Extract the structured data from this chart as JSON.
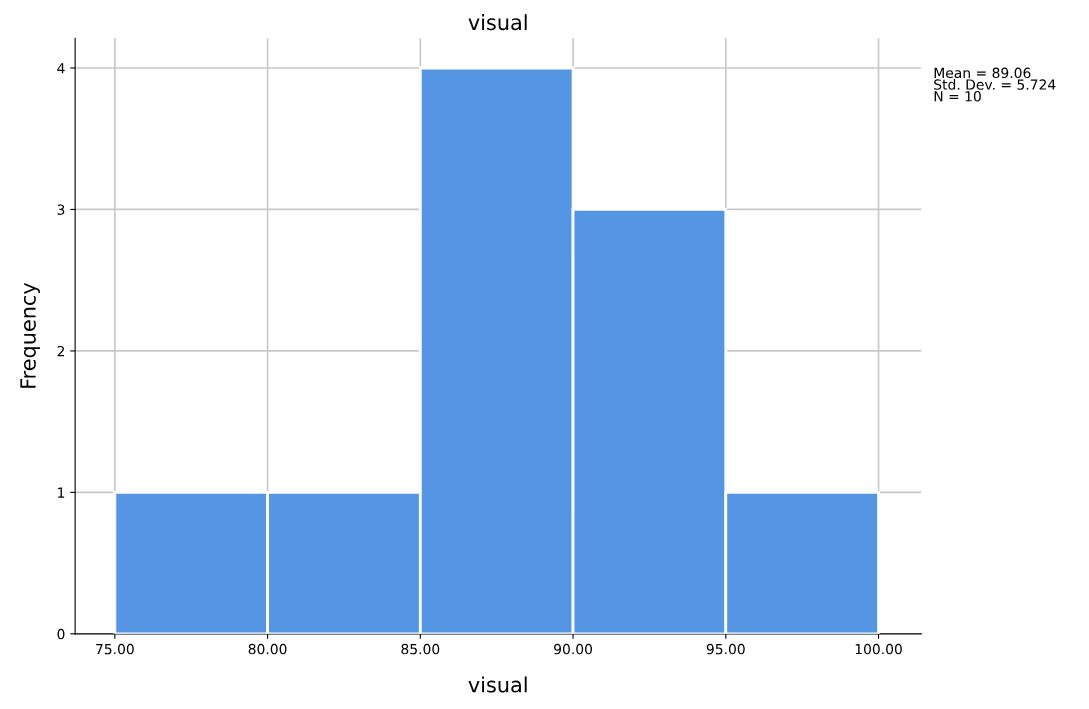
{
  "chart_data": {
    "type": "histogram",
    "title": "visual",
    "xlabel": "visual",
    "ylabel": "Frequency",
    "bins": [
      75,
      80,
      85,
      90,
      95,
      100
    ],
    "values": [
      1,
      1,
      4,
      3,
      1
    ],
    "color": "#5596e4",
    "xlim": [
      73.7,
      101.4
    ],
    "ylim": [
      0,
      4.21
    ],
    "xticks": [
      {
        "value": 75,
        "label": "75.00"
      },
      {
        "value": 80,
        "label": "80.00"
      },
      {
        "value": 85,
        "label": "85.00"
      },
      {
        "value": 90,
        "label": "90.00"
      },
      {
        "value": 95,
        "label": "95.00"
      },
      {
        "value": 100,
        "label": "100.00"
      }
    ],
    "yticks": [
      0,
      1,
      2,
      3,
      4
    ],
    "grid": true,
    "annotations": [
      "Mean = 89.06",
      "Std. Dev. = 5.724",
      "N = 10"
    ]
  }
}
